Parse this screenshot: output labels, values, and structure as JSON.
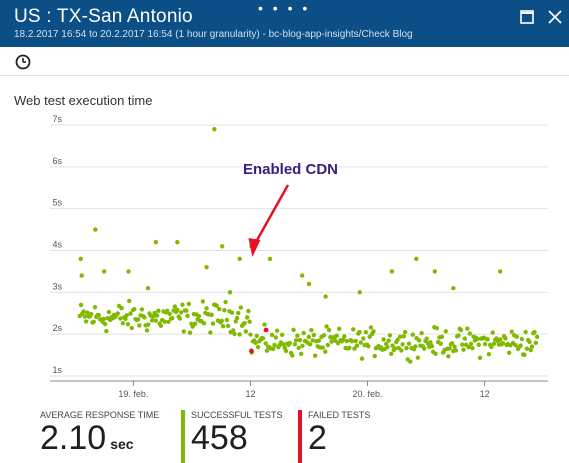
{
  "header": {
    "title": "US : TX-San Antonio",
    "subtitle": "18.2.2017 16:54 to 20.2.2017 16:54 (1 hour granularity) - bc-blog-app-insights/Check Blog",
    "more_dots": "• • • •"
  },
  "chart": {
    "title": "Web test execution time",
    "annotation": "Enabled CDN"
  },
  "metrics": {
    "avg": {
      "label": "AVERAGE RESPONSE TIME",
      "value": "2.10",
      "unit": "sec"
    },
    "success": {
      "label": "SUCCESSFUL TESTS",
      "value": "458",
      "color": "#7fba00"
    },
    "failed": {
      "label": "FAILED TESTS",
      "value": "2",
      "color": "#e81123"
    }
  },
  "chart_data": {
    "type": "scatter",
    "title": "Web test execution time",
    "x_tick_labels": [
      "19. feb.",
      "12",
      "20. feb.",
      "12"
    ],
    "y_tick_labels": [
      "1s",
      "2s",
      "3s",
      "4s",
      "5s",
      "6s",
      "7s"
    ],
    "ylim": [
      1,
      7
    ],
    "xlim_hours": [
      -6.5,
      42.5
    ],
    "x_unit": "hours from 19 feb 00:00",
    "annotation": {
      "text": "Enabled CDN",
      "at_hour": 12.2
    },
    "series": [
      {
        "name": "Successful",
        "color": "#7fba00",
        "segments": [
          {
            "from": -5.5,
            "to": 12.0,
            "median": 2.4,
            "spread": 0.22
          },
          {
            "from": 12.0,
            "to": 41.5,
            "median": 1.8,
            "spread": 0.2
          }
        ],
        "outliers": [
          [
            -5.4,
            3.8
          ],
          [
            -5.3,
            3.4
          ],
          [
            -3.9,
            4.5
          ],
          [
            -3.0,
            3.5
          ],
          [
            -0.5,
            3.5
          ],
          [
            1.5,
            3.1
          ],
          [
            2.3,
            4.2
          ],
          [
            4.5,
            4.2
          ],
          [
            7.5,
            3.6
          ],
          [
            8.3,
            6.9
          ],
          [
            9.1,
            4.1
          ],
          [
            9.9,
            3.0
          ],
          [
            10.9,
            3.8
          ],
          [
            12.1,
            4.1
          ],
          [
            14.0,
            3.8
          ],
          [
            17.3,
            3.4
          ],
          [
            18.0,
            3.2
          ],
          [
            19.7,
            2.9
          ],
          [
            23.2,
            3.0
          ],
          [
            26.5,
            3.5
          ],
          [
            29.0,
            3.8
          ],
          [
            30.9,
            3.5
          ],
          [
            32.8,
            3.1
          ],
          [
            37.6,
            3.5
          ]
        ]
      },
      {
        "name": "Failed",
        "color": "#e81123",
        "points": [
          [
            12.1,
            1.6
          ],
          [
            13.6,
            2.1
          ]
        ]
      }
    ]
  }
}
